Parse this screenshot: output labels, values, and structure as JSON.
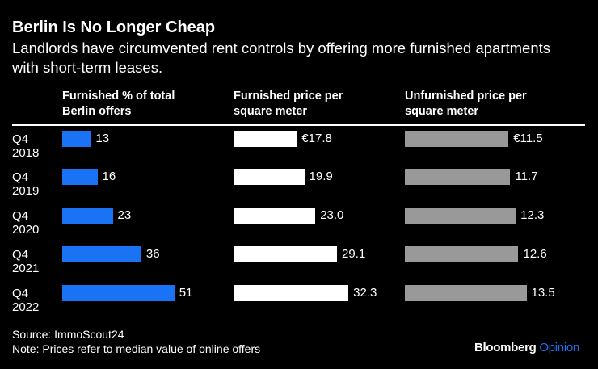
{
  "title": "Berlin Is No Longer Cheap",
  "subtitle": "Landlords have circumvented rent controls by offering more furnished apartments with short-term leases.",
  "chart_data": {
    "type": "bar",
    "orientation": "horizontal",
    "categories": [
      [
        "Q4",
        "2018"
      ],
      [
        "Q4",
        "2019"
      ],
      [
        "Q4",
        "2020"
      ],
      [
        "Q4",
        "2021"
      ],
      [
        "Q4",
        "2022"
      ]
    ],
    "series": [
      {
        "name": "Furnished % of total Berlin offers",
        "header": [
          "Furnished % of total",
          "Berlin offers"
        ],
        "values": [
          13,
          16,
          23,
          36,
          51
        ],
        "labels": [
          "13",
          "16",
          "23",
          "36",
          "51"
        ],
        "color": "#1a73f5"
      },
      {
        "name": "Furnished price per square meter",
        "header": [
          "Furnished price per",
          "square meter"
        ],
        "values": [
          17.8,
          19.9,
          23.0,
          29.1,
          32.3
        ],
        "labels": [
          "€17.8",
          "19.9",
          "23.0",
          "29.1",
          "32.3"
        ],
        "color": "#ffffff"
      },
      {
        "name": "Unfurnished price per square meter",
        "header": [
          "Unfurnished price per",
          "square meter"
        ],
        "values": [
          11.5,
          11.7,
          12.3,
          12.6,
          13.5
        ],
        "labels": [
          "€11.5",
          "11.7",
          "12.3",
          "12.6",
          "13.5"
        ],
        "color": "#999999"
      }
    ]
  },
  "footer": {
    "source": "Source: ImmoScout24",
    "note": "Note: Prices refer to median value of online offers"
  },
  "logo": {
    "brand": "Bloomberg",
    "product": "Opinion",
    "product_color": "#1a73f5"
  }
}
